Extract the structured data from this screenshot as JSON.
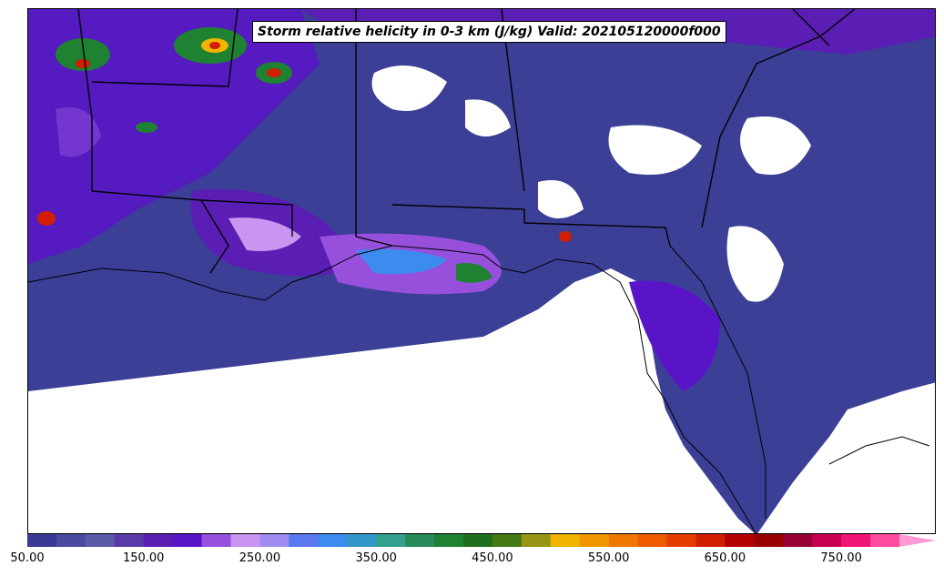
{
  "map": {
    "title": "Storm relative helicity in 0-3 km (J/kg) Valid: 202105120000f000",
    "region": "Southeastern United States and Gulf of Mexico",
    "colors": {
      "land": "#ffffff",
      "background_field": "#3b3f96",
      "boundary": "#000000"
    }
  },
  "colorbar": {
    "min": 50,
    "max": 800,
    "step": 25,
    "extend": "max",
    "extend_color": "#ff9ad5",
    "colors": [
      "#3a3a96",
      "#4a4aa0",
      "#5a5aa8",
      "#5a3aa8",
      "#5a1eb4",
      "#5a14c8",
      "#9650dc",
      "#c896f0",
      "#a08cf0",
      "#5a78f0",
      "#3c8cf0",
      "#3296c8",
      "#32a08c",
      "#288c5a",
      "#1e8232",
      "#1e6e1e",
      "#467814",
      "#969614",
      "#f0b400",
      "#f09600",
      "#f07800",
      "#f05a00",
      "#e63c00",
      "#d21e00",
      "#b40000",
      "#960000",
      "#960032",
      "#c80050",
      "#f01478",
      "#ff4ba0"
    ],
    "tick_labels": [
      "50.00",
      "150.00",
      "250.00",
      "350.00",
      "450.00",
      "550.00",
      "650.00",
      "750.00"
    ]
  }
}
